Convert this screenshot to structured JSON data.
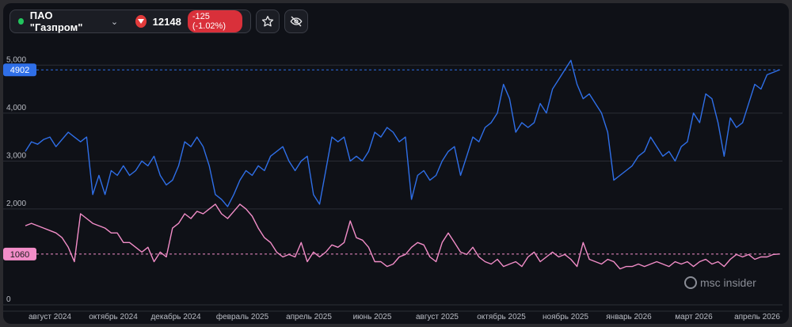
{
  "toolbar": {
    "ticker_name": "ПАО \"Газпром\"",
    "price": "12148",
    "change": "-125 (-1.02%)",
    "status_color": "#23c55e",
    "down_color": "#e23b3b",
    "icons": [
      "chevron-down-icon",
      "triangle-down-icon",
      "star-icon",
      "eye-off-icon"
    ]
  },
  "watermark": "msc insider",
  "chart_data": {
    "type": "line",
    "y_ticks": [
      "5,000",
      "4,000",
      "3,000",
      "2,000",
      "0"
    ],
    "x_ticks": [
      "август 2024",
      "октябрь 2024",
      "декабрь 2024",
      "февраль 2025",
      "апрель 2025",
      "июнь 2025",
      "август 2025",
      "октябрь 2025",
      "ноябрь 2025",
      "январь 2026",
      "март 2026",
      "апрель 2026"
    ],
    "ylim": [
      0,
      5500
    ],
    "grid": true,
    "series": [
      {
        "color": "#2f6fe8",
        "last_label": "4902",
        "values": [
          3200,
          3400,
          3350,
          3450,
          3500,
          3300,
          3450,
          3600,
          3500,
          3400,
          3500,
          2300,
          2700,
          2300,
          2800,
          2700,
          2900,
          2700,
          2800,
          3000,
          2900,
          3100,
          2700,
          2500,
          2600,
          2900,
          3400,
          3300,
          3500,
          3300,
          2900,
          2300,
          2200,
          2050,
          2300,
          2600,
          2800,
          2700,
          2900,
          2800,
          3100,
          3200,
          3300,
          3000,
          2800,
          3000,
          3100,
          2300,
          2100,
          2800,
          3500,
          3400,
          3500,
          3000,
          3100,
          3000,
          3200,
          3600,
          3500,
          3700,
          3600,
          3400,
          3500,
          2200,
          2700,
          2800,
          2600,
          2700,
          3000,
          3200,
          3300,
          2700,
          3100,
          3500,
          3400,
          3700,
          3800,
          4000,
          4600,
          4300,
          3600,
          3800,
          3700,
          3800,
          4200,
          4000,
          4500,
          4700,
          4900,
          5100,
          4600,
          4300,
          4400,
          4200,
          4000,
          3600,
          2600,
          2700,
          2800,
          2900,
          3100,
          3200,
          3500,
          3300,
          3100,
          3200,
          3000,
          3300,
          3400,
          4000,
          3800,
          4400,
          4300,
          3800,
          3100,
          3900,
          3700,
          3800,
          4200,
          4600,
          4500,
          4800,
          4850,
          4902
        ]
      },
      {
        "color": "#f28dc8",
        "last_label": "1060",
        "values": [
          1650,
          1700,
          1650,
          1600,
          1550,
          1500,
          1400,
          1200,
          900,
          1900,
          1800,
          1700,
          1650,
          1600,
          1500,
          1500,
          1300,
          1300,
          1200,
          1100,
          1200,
          900,
          1100,
          1000,
          1600,
          1700,
          1900,
          1800,
          1950,
          1900,
          2000,
          2100,
          1900,
          1800,
          1950,
          2100,
          2000,
          1850,
          1600,
          1400,
          1300,
          1100,
          1000,
          1050,
          1000,
          1300,
          900,
          1100,
          1000,
          1100,
          1250,
          1200,
          1300,
          1750,
          1400,
          1350,
          1200,
          900,
          900,
          800,
          850,
          1000,
          1050,
          1200,
          1300,
          1250,
          1000,
          900,
          1300,
          1500,
          1300,
          1100,
          1050,
          1200,
          1000,
          900,
          850,
          950,
          800,
          850,
          900,
          800,
          1000,
          1100,
          900,
          1000,
          1100,
          1000,
          1050,
          950,
          800,
          1300,
          950,
          900,
          850,
          950,
          900,
          750,
          800,
          800,
          850,
          800,
          850,
          900,
          850,
          800,
          900,
          850,
          900,
          800,
          900,
          950,
          850,
          900,
          800,
          950,
          1050,
          1000,
          1050,
          950,
          1000,
          1000,
          1050,
          1060
        ]
      }
    ]
  }
}
